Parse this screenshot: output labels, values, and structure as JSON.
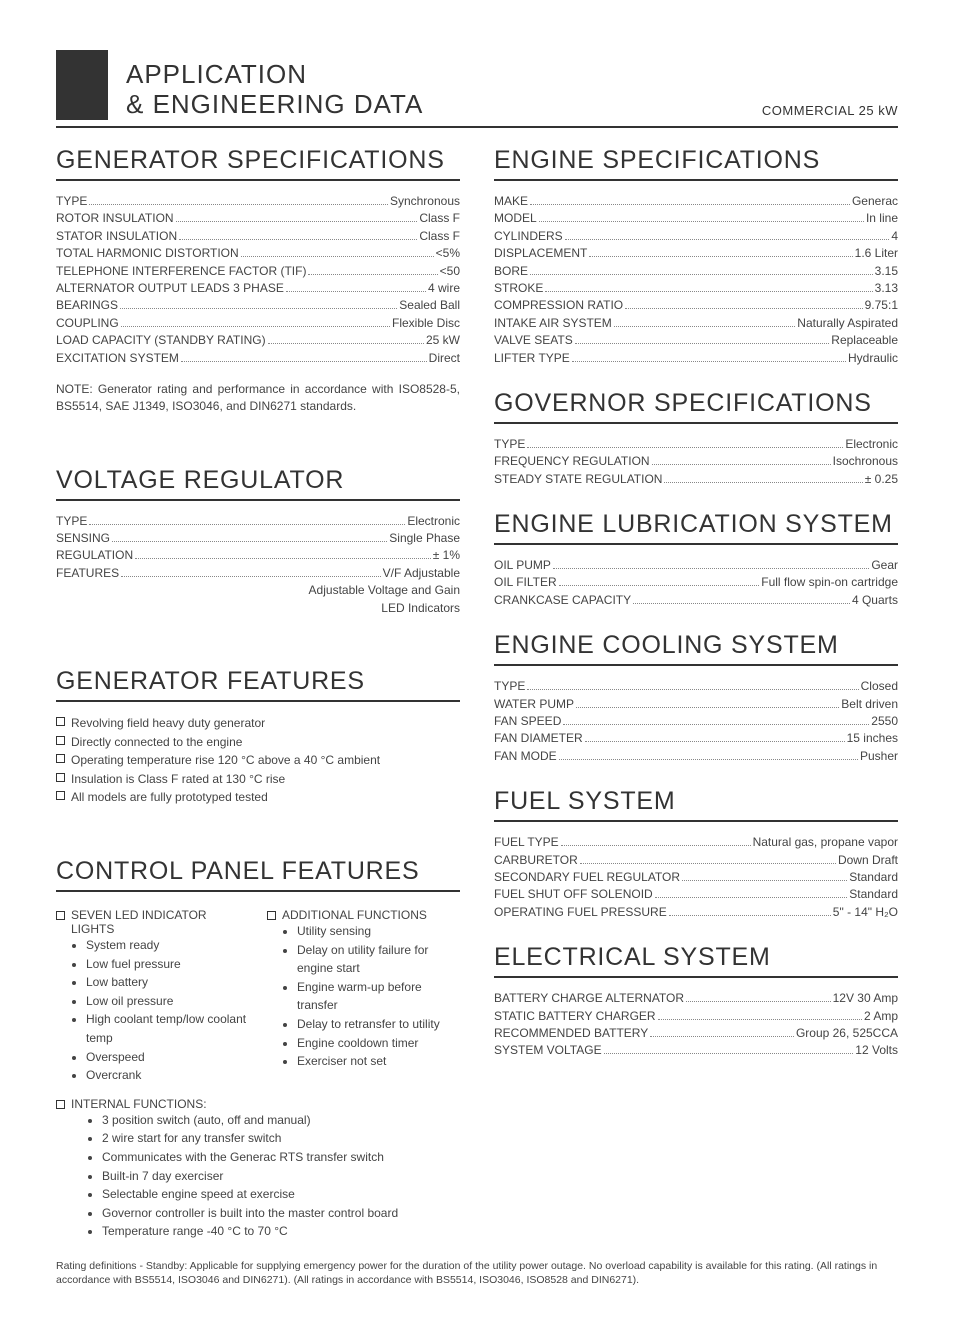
{
  "header": {
    "title_line1": "APPLICATION",
    "title_line2": "& ENGINEERING DATA",
    "right": "COMMERCIAL 25 kW"
  },
  "left": {
    "generator_specs": {
      "title": "GENERATOR SPECIFICATIONS",
      "rows": [
        {
          "label": "TYPE",
          "value": "Synchronous"
        },
        {
          "label": "ROTOR INSULATION",
          "value": "Class F"
        },
        {
          "label": "STATOR INSULATION",
          "value": "Class F"
        },
        {
          "label": "TOTAL HARMONIC DISTORTION",
          "value": "<5%"
        },
        {
          "label": "TELEPHONE INTERFERENCE FACTOR (TIF)",
          "value": "<50"
        },
        {
          "label": "ALTERNATOR OUTPUT LEADS 3 PHASE",
          "value": "4 wire"
        },
        {
          "label": "BEARINGS",
          "value": "Sealed Ball"
        },
        {
          "label": "COUPLING",
          "value": "Flexible Disc"
        },
        {
          "label": "LOAD CAPACITY (STANDBY RATING)",
          "value": "25 kW"
        },
        {
          "label": "EXCITATION SYSTEM",
          "value": "Direct"
        }
      ],
      "note": "NOTE: Generator rating and performance in accordance with ISO8528-5, BS5514, SAE J1349, ISO3046, and DIN6271 standards."
    },
    "voltage_regulator": {
      "title": "VOLTAGE REGULATOR",
      "rows": [
        {
          "label": "TYPE",
          "value": "Electronic"
        },
        {
          "label": "SENSING",
          "value": "Single Phase"
        },
        {
          "label": "REGULATION",
          "value": "± 1%"
        },
        {
          "label": "FEATURES",
          "value": "V/F Adjustable"
        }
      ],
      "extra_lines": [
        "Adjustable Voltage and Gain",
        "LED Indicators"
      ]
    },
    "generator_features": {
      "title": "GENERATOR FEATURES",
      "items": [
        "Revolving field heavy duty generator",
        "Directly connected to the engine",
        "Operating temperature rise 120 °C above a 40 °C ambient",
        "Insulation is Class F rated at 130 °C rise",
        "All models are fully prototyped tested"
      ]
    },
    "control_panel": {
      "title": "CONTROL PANEL FEATURES",
      "col1_head": "SEVEN LED INDICATOR LIGHTS",
      "col1_items": [
        "System ready",
        "Low fuel pressure",
        "Low battery",
        "Low oil pressure",
        "High coolant temp/low coolant temp",
        "Overspeed",
        "Overcrank"
      ],
      "col2_head": "ADDITIONAL FUNCTIONS",
      "col2_items": [
        "Utility sensing",
        "Delay on utility failure for engine start",
        "Engine warm-up before transfer",
        "Delay to retransfer to utility",
        "Engine cooldown timer",
        "Exerciser not set"
      ],
      "internal_head": "INTERNAL FUNCTIONS:",
      "internal_items": [
        "3 position switch (auto, off and manual)",
        "2 wire start for any transfer switch",
        "Communicates with the Generac RTS transfer switch",
        "Built-in 7 day exerciser",
        "Selectable engine speed at exercise",
        "Governor controller is built into the master control board",
        "Temperature range -40 °C to 70 °C"
      ]
    }
  },
  "right": {
    "engine_specs": {
      "title": "ENGINE SPECIFICATIONS",
      "rows": [
        {
          "label": "MAKE",
          "value": "Generac"
        },
        {
          "label": "MODEL",
          "value": "In line"
        },
        {
          "label": "CYLINDERS",
          "value": "4"
        },
        {
          "label": "DISPLACEMENT",
          "value": "1.6 Liter"
        },
        {
          "label": "BORE",
          "value": "3.15"
        },
        {
          "label": "STROKE",
          "value": "3.13"
        },
        {
          "label": "COMPRESSION RATIO",
          "value": "9.75:1"
        },
        {
          "label": "INTAKE AIR SYSTEM",
          "value": "Naturally Aspirated"
        },
        {
          "label": "VALVE SEATS",
          "value": "Replaceable"
        },
        {
          "label": "LIFTER TYPE",
          "value": "Hydraulic"
        }
      ]
    },
    "governor": {
      "title": "GOVERNOR SPECIFICATIONS",
      "rows": [
        {
          "label": "TYPE",
          "value": "Electronic"
        },
        {
          "label": "FREQUENCY REGULATION",
          "value": "Isochronous"
        },
        {
          "label": "STEADY STATE REGULATION",
          "value": "± 0.25"
        }
      ]
    },
    "lubrication": {
      "title": "ENGINE LUBRICATION SYSTEM",
      "rows": [
        {
          "label": "OIL PUMP",
          "value": "Gear"
        },
        {
          "label": "OIL FILTER",
          "value": "Full flow spin-on cartridge"
        },
        {
          "label": "CRANKCASE CAPACITY",
          "value": "4 Quarts"
        }
      ]
    },
    "cooling": {
      "title": "ENGINE COOLING SYSTEM",
      "rows": [
        {
          "label": "TYPE",
          "value": "Closed"
        },
        {
          "label": "WATER PUMP",
          "value": "Belt driven"
        },
        {
          "label": "FAN SPEED",
          "value": "2550"
        },
        {
          "label": "FAN DIAMETER",
          "value": "15 inches"
        },
        {
          "label": "FAN MODE",
          "value": "Pusher"
        }
      ]
    },
    "fuel": {
      "title": "FUEL SYSTEM",
      "rows": [
        {
          "label": "FUEL TYPE",
          "value": "Natural gas, propane vapor"
        },
        {
          "label": "CARBURETOR",
          "value": "Down Draft"
        },
        {
          "label": "SECONDARY FUEL REGULATOR",
          "value": "Standard"
        },
        {
          "label": "FUEL SHUT OFF SOLENOID",
          "value": "Standard"
        },
        {
          "label": "OPERATING FUEL PRESSURE",
          "value": "5\" - 14\" H₂O"
        }
      ]
    },
    "electrical": {
      "title": "ELECTRICAL SYSTEM",
      "rows": [
        {
          "label": "BATTERY CHARGE ALTERNATOR",
          "value": "12V 30 Amp"
        },
        {
          "label": "STATIC BATTERY CHARGER",
          "value": "2 Amp"
        },
        {
          "label": "RECOMMENDED BATTERY",
          "value": "Group 26, 525CCA"
        },
        {
          "label": "SYSTEM VOLTAGE",
          "value": "12 Volts"
        }
      ]
    }
  },
  "rating": "Rating definitions - Standby: Applicable for supplying emergency power for the duration of the utility power outage.  No overload capability is available for this rating. (All ratings in accordance with BS5514, ISO3046 and DIN6271).  (All ratings in accordance with BS5514, ISO3046, ISO8528 and DIN6271)."
}
